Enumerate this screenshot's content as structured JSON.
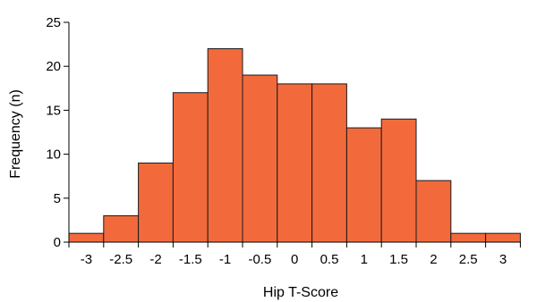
{
  "chart_data": {
    "type": "bar",
    "subtype": "histogram",
    "xlabel": "Hip T-Score",
    "ylabel": "Frequency (n)",
    "ylim": [
      0,
      25
    ],
    "yticks": [
      "0",
      "5",
      "10",
      "15",
      "20",
      "25"
    ],
    "xtick_labels": [
      "-3",
      "-2.5",
      "-2",
      "-1.5",
      "-1",
      "-0.5",
      "0",
      "0.5",
      "1",
      "1.5",
      "2",
      "2.5",
      "3"
    ],
    "bins": [
      {
        "from": -3.25,
        "to": -2.75,
        "value": 1
      },
      {
        "from": -2.75,
        "to": -2.25,
        "value": 3
      },
      {
        "from": -2.25,
        "to": -1.75,
        "value": 9
      },
      {
        "from": -1.75,
        "to": -1.25,
        "value": 17
      },
      {
        "from": -1.25,
        "to": -0.75,
        "value": 22
      },
      {
        "from": -0.75,
        "to": -0.25,
        "value": 19
      },
      {
        "from": -0.25,
        "to": 0.25,
        "value": 18
      },
      {
        "from": 0.25,
        "to": 0.75,
        "value": 18
      },
      {
        "from": 0.75,
        "to": 1.25,
        "value": 13
      },
      {
        "from": 1.25,
        "to": 1.75,
        "value": 14
      },
      {
        "from": 1.75,
        "to": 2.25,
        "value": 7
      },
      {
        "from": 2.25,
        "to": 2.75,
        "value": 1
      },
      {
        "from": 2.75,
        "to": 3.25,
        "value": 1
      }
    ],
    "bar_color": "#f26a3c",
    "edge_color": "#1a1a1a",
    "grid": false,
    "legend": "none"
  }
}
